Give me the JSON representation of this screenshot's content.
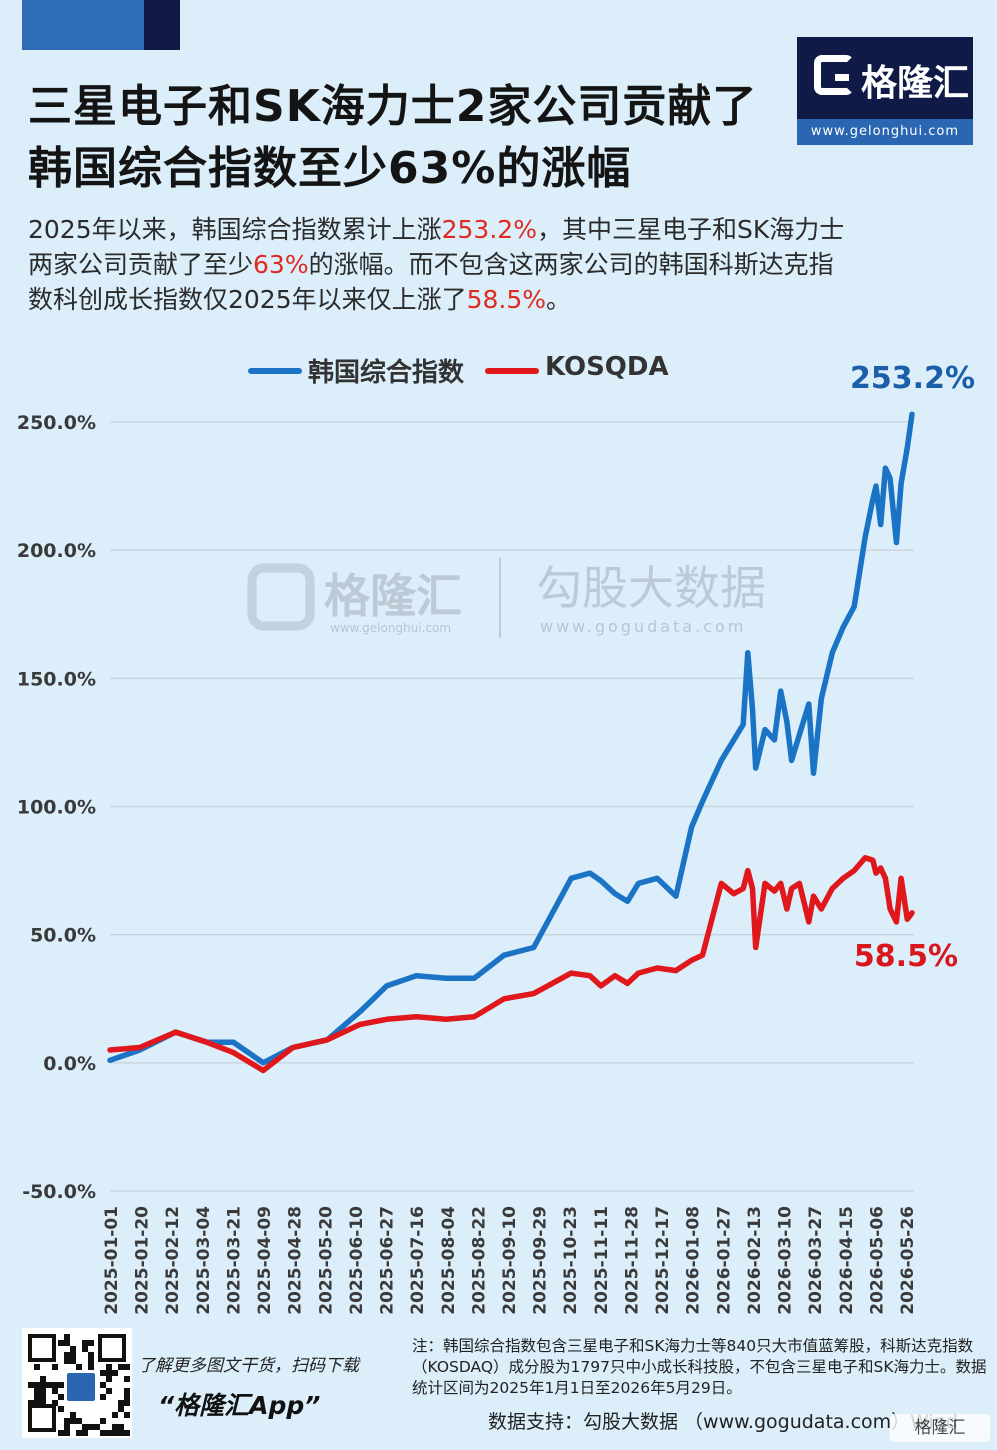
{
  "header": {
    "title_line1": "三星电子和SK海力士2家公司贡献了",
    "title_line2": "韩国综合指数至少63%的涨幅",
    "brand_name": "格隆汇",
    "brand_url": "www.gelonghui.com"
  },
  "subtitle": {
    "p1": "2025年以来，韩国综合指数累计上涨",
    "h1": "253.2%",
    "p2": "，其中三星电子和SK海力士",
    "p3": "两家公司贡献了至少",
    "h2": "63%",
    "p4": "的涨幅。而不包含这两家公司的韩国科斯达克指",
    "p5": "数科创成长指数仅2025年以来仅上涨了",
    "h3": "58.5%",
    "p6": "。"
  },
  "colors": {
    "kospi": "#1a73c4",
    "kosdaq": "#e0171b",
    "highlight": "#e02a20",
    "grid": "#c9d3dc"
  },
  "watermark": {
    "brand1": "格隆汇",
    "url1": "www.gelonghui.com",
    "brand2": "勾股大数据",
    "url2": "www.gogudata.com"
  },
  "chart_data": {
    "type": "line",
    "title": "",
    "ylim": [
      -50,
      260
    ],
    "yticks": [
      "250.0%",
      "200.0%",
      "150.0%",
      "100.0%",
      "50.0%",
      "0.0%",
      "-50.0%"
    ],
    "ytick_values": [
      250,
      200,
      150,
      100,
      50,
      0,
      -50
    ],
    "x_tick_labels": [
      "2025-01-01",
      "2025-01-20",
      "2025-02-12",
      "2025-03-04",
      "2025-03-21",
      "2025-04-09",
      "2025-04-28",
      "2025-05-20",
      "2025-06-10",
      "2025-06-27",
      "2025-07-16",
      "2025-08-04",
      "2025-08-22",
      "2025-09-10",
      "2025-09-29",
      "2025-10-23",
      "2025-11-11",
      "2025-11-28",
      "2025-12-17",
      "2026-01-08",
      "2026-01-27",
      "2026-02-13",
      "2026-03-10",
      "2026-03-27",
      "2026-04-15",
      "2026-05-06",
      "2026-05-26"
    ],
    "grid": "horizontal",
    "legend_position": "top",
    "end_labels": {
      "kospi": "253.2%",
      "kosdaq": "58.5%"
    },
    "series": [
      {
        "name": "韩国综合指数",
        "x": [
          "2025-01-01",
          "2025-01-20",
          "2025-02-12",
          "2025-03-04",
          "2025-03-21",
          "2025-04-09",
          "2025-04-28",
          "2025-05-20",
          "2025-06-10",
          "2025-06-27",
          "2025-07-16",
          "2025-08-04",
          "2025-08-22",
          "2025-09-10",
          "2025-09-29",
          "2025-10-23",
          "2025-11-04",
          "2025-11-11",
          "2025-11-20",
          "2025-11-28",
          "2025-12-05",
          "2025-12-17",
          "2025-12-29",
          "2026-01-08",
          "2026-01-15",
          "2026-01-27",
          "2026-02-04",
          "2026-02-10",
          "2026-02-13",
          "2026-02-16",
          "2026-02-18",
          "2026-02-24",
          "2026-03-02",
          "2026-03-06",
          "2026-03-10",
          "2026-03-13",
          "2026-03-18",
          "2026-03-24",
          "2026-03-27",
          "2026-04-01",
          "2026-04-08",
          "2026-04-15",
          "2026-04-22",
          "2026-04-29",
          "2026-05-04",
          "2026-05-06",
          "2026-05-09",
          "2026-05-12",
          "2026-05-15",
          "2026-05-19",
          "2026-05-22",
          "2026-05-26",
          "2026-05-29"
        ],
        "y": [
          1,
          5,
          12,
          8,
          8,
          0,
          6,
          9,
          20,
          30,
          34,
          33,
          33,
          42,
          45,
          72,
          74,
          71,
          66,
          63,
          70,
          72,
          65,
          92,
          102,
          118,
          126,
          132,
          160,
          138,
          115,
          130,
          126,
          145,
          133,
          118,
          128,
          140,
          113,
          142,
          160,
          170,
          178,
          205,
          220,
          225,
          210,
          232,
          228,
          203,
          226,
          240,
          253
        ]
      },
      {
        "name": "KOSQDA",
        "x": [
          "2025-01-01",
          "2025-01-20",
          "2025-02-12",
          "2025-03-04",
          "2025-03-21",
          "2025-04-09",
          "2025-04-28",
          "2025-05-20",
          "2025-06-10",
          "2025-06-27",
          "2025-07-16",
          "2025-08-04",
          "2025-08-22",
          "2025-09-10",
          "2025-09-29",
          "2025-10-23",
          "2025-11-04",
          "2025-11-11",
          "2025-11-20",
          "2025-11-28",
          "2025-12-05",
          "2025-12-17",
          "2025-12-29",
          "2026-01-08",
          "2026-01-15",
          "2026-01-27",
          "2026-02-04",
          "2026-02-10",
          "2026-02-13",
          "2026-02-16",
          "2026-02-18",
          "2026-02-24",
          "2026-03-02",
          "2026-03-06",
          "2026-03-10",
          "2026-03-13",
          "2026-03-18",
          "2026-03-24",
          "2026-03-27",
          "2026-04-01",
          "2026-04-08",
          "2026-04-15",
          "2026-04-22",
          "2026-04-29",
          "2026-05-04",
          "2026-05-06",
          "2026-05-09",
          "2026-05-12",
          "2026-05-15",
          "2026-05-19",
          "2026-05-22",
          "2026-05-26",
          "2026-05-29"
        ],
        "y": [
          5,
          6,
          12,
          8,
          4,
          -3,
          6,
          9,
          15,
          17,
          18,
          17,
          18,
          25,
          27,
          35,
          34,
          30,
          34,
          31,
          35,
          37,
          36,
          40,
          42,
          70,
          66,
          68,
          75,
          68,
          45,
          70,
          67,
          70,
          60,
          68,
          70,
          55,
          65,
          60,
          68,
          72,
          75,
          80,
          79,
          74,
          76,
          72,
          60,
          55,
          72,
          56,
          58.5
        ]
      }
    ]
  },
  "footer": {
    "note": "注：韩国综合指数包含三星电子和SK海力士等840只大市值蓝筹股，科斯达克指数（KOSDAQ）成分股为1797只中小成长科技股，不包含三星电子和SK海力士。数据统计区间为2025年1月1日至2026年5月29日。",
    "source": "数据支持：勾股大数据 （www.gogudata.com）Wind",
    "brand": "格隆汇",
    "cta_line1": "了解更多图文干货，扫码下载",
    "cta_line2": "“格隆汇App”"
  }
}
